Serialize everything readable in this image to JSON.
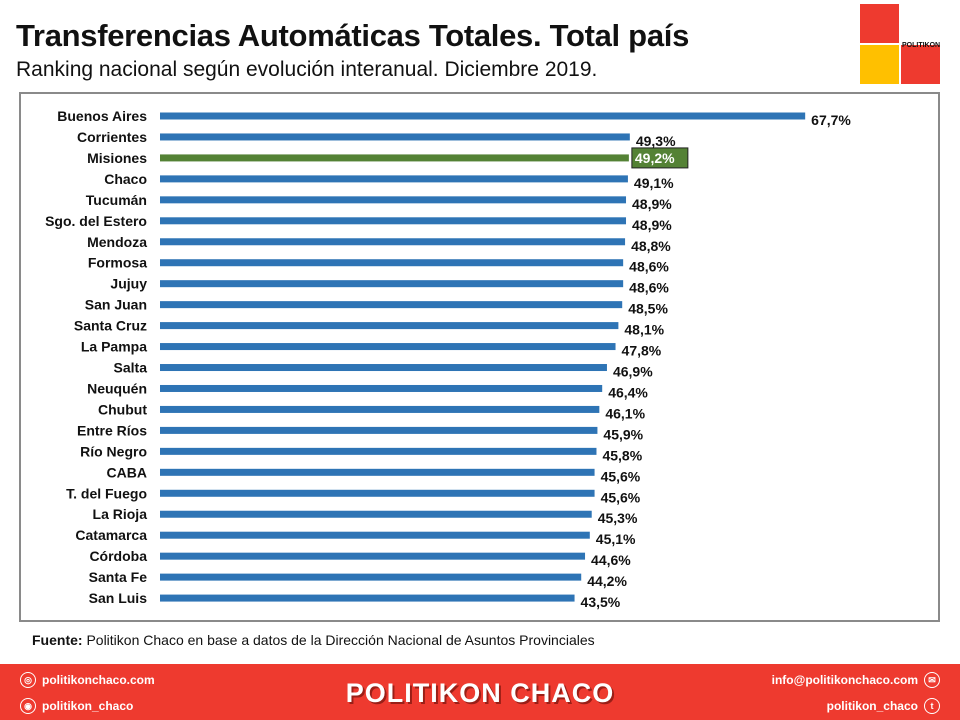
{
  "header": {
    "title": "Transferencias Automáticas Totales. Total país",
    "subtitle": "Ranking nacional según evolución interanual. Diciembre 2019.",
    "logo_text": "POLITIKON"
  },
  "source": {
    "label": "Fuente:",
    "text": " Politikon Chaco en base a datos de la Dirección Nacional de Asuntos Provinciales"
  },
  "footer": {
    "website": "politikonchaco.com",
    "instagram": "politikon_chaco",
    "brand": "POLITIKON CHACO",
    "email": "info@politikonchaco.com",
    "twitter": "politikon_chaco"
  },
  "colors": {
    "bar": "#2e74b5",
    "highlight": "#548235",
    "footer": "#ee3a2f"
  },
  "chart_data": {
    "type": "bar",
    "orientation": "horizontal",
    "title": "Transferencias Automáticas Totales. Total país",
    "categories": [
      "Buenos Aires",
      "Corrientes",
      "Misiones",
      "Chaco",
      "Tucumán",
      "Sgo. del Estero",
      "Mendoza",
      "Formosa",
      "Jujuy",
      "San Juan",
      "Santa Cruz",
      "La Pampa",
      "Salta",
      "Neuquén",
      "Chubut",
      "Entre Ríos",
      "Río Negro",
      "CABA",
      "T. del Fuego",
      "La Rioja",
      "Catamarca",
      "Córdoba",
      "Santa Fe",
      "San Luis"
    ],
    "values": [
      67.7,
      49.3,
      49.2,
      49.1,
      48.9,
      48.9,
      48.8,
      48.6,
      48.6,
      48.5,
      48.1,
      47.8,
      46.9,
      46.4,
      46.1,
      45.9,
      45.8,
      45.6,
      45.6,
      45.3,
      45.1,
      44.6,
      44.2,
      43.5
    ],
    "labels": [
      "67,7%",
      "49,3%",
      "49,2%",
      "49,1%",
      "48,9%",
      "48,9%",
      "48,8%",
      "48,6%",
      "48,6%",
      "48,5%",
      "48,1%",
      "47,8%",
      "46,9%",
      "46,4%",
      "46,1%",
      "45,9%",
      "45,8%",
      "45,6%",
      "45,6%",
      "45,3%",
      "45,1%",
      "44,6%",
      "44,2%",
      "43,5%"
    ],
    "highlight": "Misiones",
    "xlim": [
      0,
      70
    ],
    "unit": "%",
    "grid": false,
    "legend": "none"
  }
}
